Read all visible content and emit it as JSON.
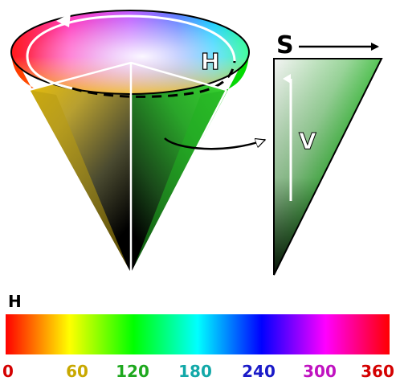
{
  "cone": {
    "hue_label": "H",
    "saturation_label": "S",
    "value_label": "V"
  },
  "hue_scale": {
    "title": "H",
    "ticks": [
      {
        "label": "0",
        "color": "#d40000"
      },
      {
        "label": "60",
        "color": "#c8a800"
      },
      {
        "label": "120",
        "color": "#1ea81e"
      },
      {
        "label": "180",
        "color": "#12a8a8"
      },
      {
        "label": "240",
        "color": "#1a1ac8"
      },
      {
        "label": "300",
        "color": "#c012c0"
      },
      {
        "label": "360",
        "color": "#d40000"
      }
    ],
    "gradient_stops": [
      "#ff0000",
      "#ffff00",
      "#00ff00",
      "#00ffff",
      "#0000ff",
      "#ff00ff",
      "#ff0000"
    ]
  },
  "colors": {
    "triangle_green": "#1fd41f",
    "outline": "#ffffff",
    "arrow": "#000000"
  }
}
